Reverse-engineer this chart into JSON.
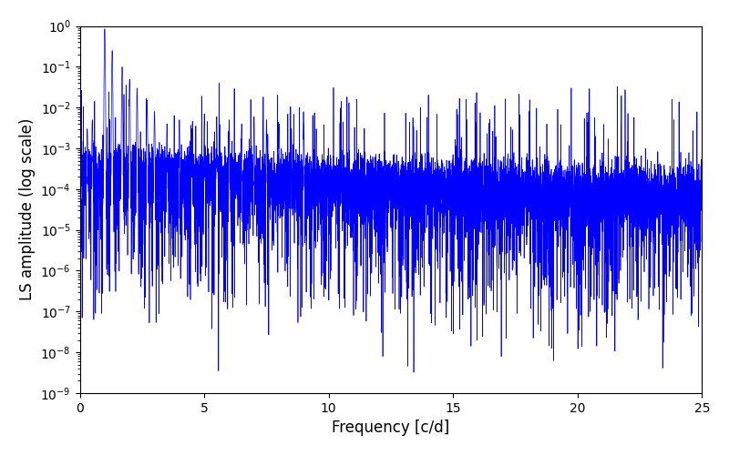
{
  "title": "",
  "xlabel": "Frequency [c/d]",
  "ylabel": "LS amplitude (log scale)",
  "line_color": "#0000ff",
  "line_width": 0.5,
  "xlim": [
    0,
    25
  ],
  "ylim": [
    1e-09,
    1.0
  ],
  "yscale": "log",
  "figsize": [
    8.0,
    5.0
  ],
  "dpi": 100,
  "freq_min": 0.0,
  "freq_max": 25.0,
  "n_points": 8000,
  "seed": 12345,
  "background_color": "#ffffff"
}
